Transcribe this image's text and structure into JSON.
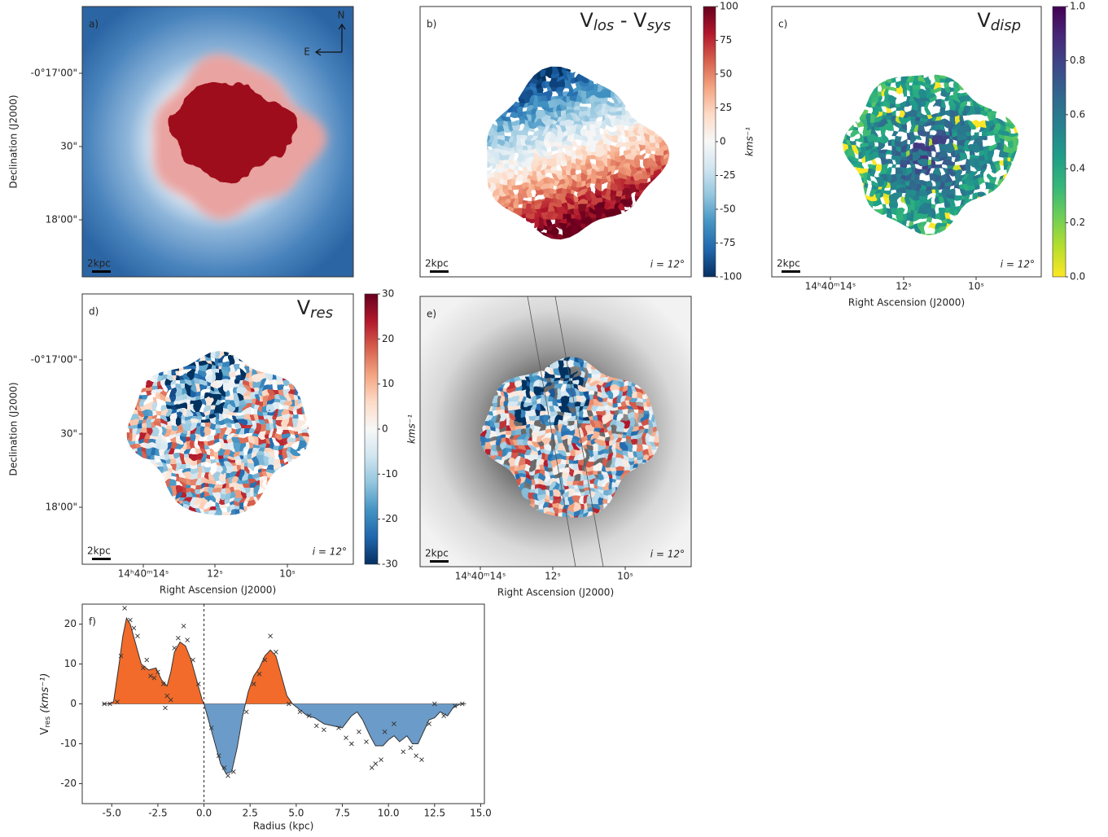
{
  "chart_data": [
    {
      "type": "image",
      "label": "a)",
      "compass": [
        "N",
        "E"
      ],
      "scalebar": "2kpc",
      "ylabel": "Declination (J2000)",
      "ytick_labels": [
        "-0°17'00\"",
        "30\"",
        "18'00\""
      ]
    },
    {
      "type": "image",
      "label": "b)",
      "title": [
        "V",
        "los",
        " - V",
        "sys"
      ],
      "scalebar": "2kpc",
      "inclination": "i = 12°",
      "colorbar": {
        "cmap": "RdBu_r",
        "lim": [
          -100,
          100
        ],
        "ticks": [
          -100,
          -75,
          -50,
          -25,
          0,
          25,
          50,
          75,
          100
        ],
        "label": "kms⁻¹"
      }
    },
    {
      "type": "image",
      "label": "c)",
      "title": [
        "V",
        "disp"
      ],
      "scalebar": "2kpc",
      "inclination": "i = 12°",
      "colorbar": {
        "cmap": "viridis_r",
        "lim": [
          0,
          1
        ],
        "ticks": [
          {
            "value": 0,
            "label": "0.0"
          },
          0.2,
          0.4,
          0.6,
          0.8,
          {
            "value": 1,
            "label": "1.0"
          }
        ]
      },
      "xlabel": "Right Ascension (J2000)",
      "xtick_labels": [
        "14ʰ40ᵐ14ˢ",
        "12ˢ",
        "10ˢ"
      ]
    },
    {
      "type": "image",
      "label": "d)",
      "title": [
        "V",
        "res"
      ],
      "scalebar": "2kpc",
      "inclination": "i = 12°",
      "colorbar": {
        "cmap": "RdBu_r",
        "lim": [
          -30,
          30
        ],
        "ticks": [
          -30,
          -20,
          -10,
          0,
          10,
          20,
          30
        ],
        "label": "kms⁻¹"
      },
      "ylabel": "Declination (J2000)",
      "ytick_labels": [
        "-0°17'00\"",
        "30\"",
        "18'00\""
      ],
      "xlabel": "Right Ascension (J2000)",
      "xtick_labels": [
        "14ʰ40ᵐ14ˢ",
        "12ˢ",
        "10ˢ"
      ]
    },
    {
      "type": "image",
      "label": "e)",
      "scalebar": "2kpc",
      "inclination": "i = 12°",
      "xlabel": "Right Ascension (J2000)",
      "xtick_labels": [
        "14ʰ40ᵐ14ˢ",
        "12ˢ",
        "10ˢ"
      ]
    },
    {
      "type": "area",
      "label": "f)",
      "xlabel": "Radius (kpc)",
      "ylabel": [
        "V",
        "res",
        " (kms⁻¹)"
      ],
      "xlim": [
        -6.6,
        15.2
      ],
      "ylim": [
        -25,
        25
      ],
      "xticks": [
        {
          "value": -5,
          "label": "-5.0"
        },
        {
          "value": -2.5,
          "label": "-2.5"
        },
        {
          "value": 0,
          "label": "0.0"
        },
        {
          "value": 2.5,
          "label": "2.5"
        },
        {
          "value": 5,
          "label": "5.0"
        },
        {
          "value": 7.5,
          "label": "7.5"
        },
        {
          "value": 10,
          "label": "10.0"
        },
        {
          "value": 12.5,
          "label": "12.5"
        },
        {
          "value": 15,
          "label": "15.0"
        }
      ],
      "yticks": [
        -20,
        -10,
        0,
        10,
        20
      ],
      "vline": 0,
      "positive_color": "#f26b2a",
      "negative_color": "#6b9bc8",
      "x": [
        -5.5,
        -5.2,
        -4.9,
        -4.6,
        -4.4,
        -4.2,
        -4.0,
        -3.7,
        -3.4,
        -3.0,
        -2.6,
        -2.3,
        -2.0,
        -1.8,
        -1.6,
        -1.3,
        -1.0,
        -0.7,
        -0.4,
        -0.1,
        0.0,
        0.3,
        0.6,
        0.9,
        1.2,
        1.5,
        1.8,
        2.1,
        2.4,
        2.7,
        3.0,
        3.3,
        3.6,
        3.9,
        4.2,
        4.5,
        4.8,
        5.2,
        5.6,
        6.0,
        6.5,
        7.0,
        7.5,
        8.0,
        8.3,
        8.6,
        9.0,
        9.3,
        9.7,
        10.0,
        10.3,
        10.6,
        11.0,
        11.3,
        11.6,
        11.9,
        12.2,
        12.5,
        12.8,
        13.2,
        13.5,
        13.9,
        14.2
      ],
      "values": [
        0,
        0,
        0.5,
        10,
        17,
        21.5,
        20,
        15,
        10,
        8.5,
        9,
        6,
        4.5,
        8,
        13,
        15.5,
        14.5,
        11,
        6,
        1,
        0,
        -5,
        -10,
        -15,
        -17.5,
        -17,
        -11,
        -3,
        3,
        7,
        9,
        12,
        13.5,
        12,
        7,
        2,
        0,
        -1.5,
        -3,
        -3.5,
        -5,
        -5.5,
        -6,
        -3,
        -2,
        -4,
        -8,
        -10.5,
        -10.5,
        -9,
        -8,
        -9.5,
        -8,
        -10,
        -10,
        -7,
        -4,
        -3.5,
        -2,
        -3,
        -1,
        0,
        0
      ],
      "points": {
        "x": [
          -5.4,
          -5.1,
          -4.7,
          -4.5,
          -4.3,
          -4.0,
          -3.8,
          -3.6,
          -3.3,
          -3.1,
          -2.9,
          -2.7,
          -2.5,
          -2.2,
          -2.0,
          -2.1,
          -1.8,
          -1.6,
          -1.4,
          -1.1,
          -0.9,
          -0.6,
          -0.3,
          0.4,
          0.8,
          1.1,
          1.3,
          1.6,
          2.3,
          2.7,
          3.0,
          3.3,
          3.6,
          3.9,
          4.6,
          5.2,
          5.7,
          6.1,
          6.5,
          7.3,
          7.7,
          8.0,
          8.4,
          8.8,
          9.1,
          9.3,
          9.6,
          9.8,
          10.3,
          10.8,
          11.2,
          11.5,
          11.8,
          12.2,
          12.5,
          13.0,
          13.6,
          14.0
        ],
        "values": [
          0,
          0,
          0.5,
          12,
          24,
          21,
          19,
          17,
          9,
          11,
          7,
          6.5,
          8,
          5,
          2,
          -1,
          1,
          14,
          16.5,
          19.5,
          16,
          11,
          5,
          -6,
          -13,
          -16,
          -18,
          -17,
          -2,
          5,
          7.5,
          11,
          17,
          13,
          0,
          -2,
          -3,
          -5.5,
          -6.5,
          -6,
          -8.5,
          -10,
          -7,
          -9.5,
          -16,
          -15,
          -14,
          -7,
          -5,
          -12,
          -11,
          -13,
          -14,
          -5,
          0,
          -3,
          -0.5,
          0
        ]
      }
    }
  ]
}
